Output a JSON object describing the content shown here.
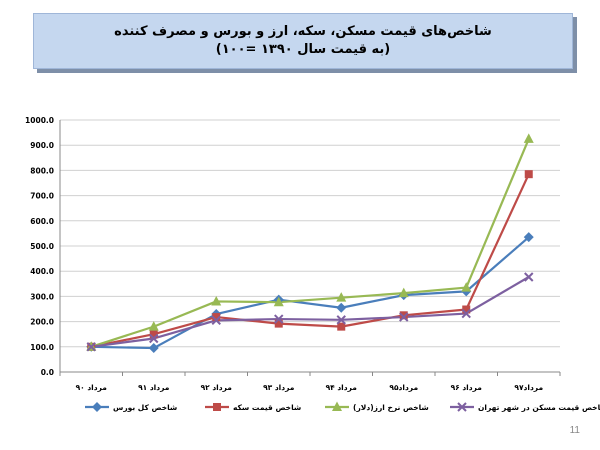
{
  "title": {
    "line1": "شاخص‌های قیمت مسکن، سکه، ارز و بورس و مصرف کننده",
    "line2": "(به قیمت سال ۱۳۹۰ =۱۰۰)"
  },
  "page_number": "11",
  "chart_data": {
    "type": "line",
    "title": "",
    "xlabel": "",
    "ylabel": "",
    "ylim": [
      0,
      1000
    ],
    "yticks": [
      "0.0",
      "100.0",
      "200.0",
      "300.0",
      "400.0",
      "500.0",
      "600.0",
      "700.0",
      "800.0",
      "900.0",
      "1000.0"
    ],
    "categories": [
      "مرداد ۹۰",
      "مرداد ۹۱",
      "مرداد ۹۲",
      "مرداد ۹۳",
      "مرداد ۹۴",
      "مرداد۹۵",
      "مرداد ۹۶",
      "مرداد۹۷"
    ],
    "grid": true,
    "legend_position": "bottom",
    "series": [
      {
        "name": "شاخص کل بورس",
        "color": "#4a7ebb",
        "marker": "diamond",
        "values": [
          100,
          95,
          230,
          287,
          255,
          305,
          320,
          535
        ]
      },
      {
        "name": "شاخص قیمت سکه",
        "color": "#be4b48",
        "marker": "square",
        "values": [
          100,
          150,
          218,
          192,
          180,
          225,
          248,
          785
        ]
      },
      {
        "name": "(دلار)شاخص نرخ ارز",
        "color": "#98b954",
        "marker": "triangle",
        "values": [
          100,
          180,
          280,
          277,
          295,
          313,
          335,
          925
        ]
      },
      {
        "name": "شاخص قیمت مسکن در شهر تهران",
        "color": "#7d60a0",
        "marker": "x",
        "values": [
          100,
          133,
          205,
          210,
          207,
          218,
          232,
          377
        ]
      }
    ]
  }
}
